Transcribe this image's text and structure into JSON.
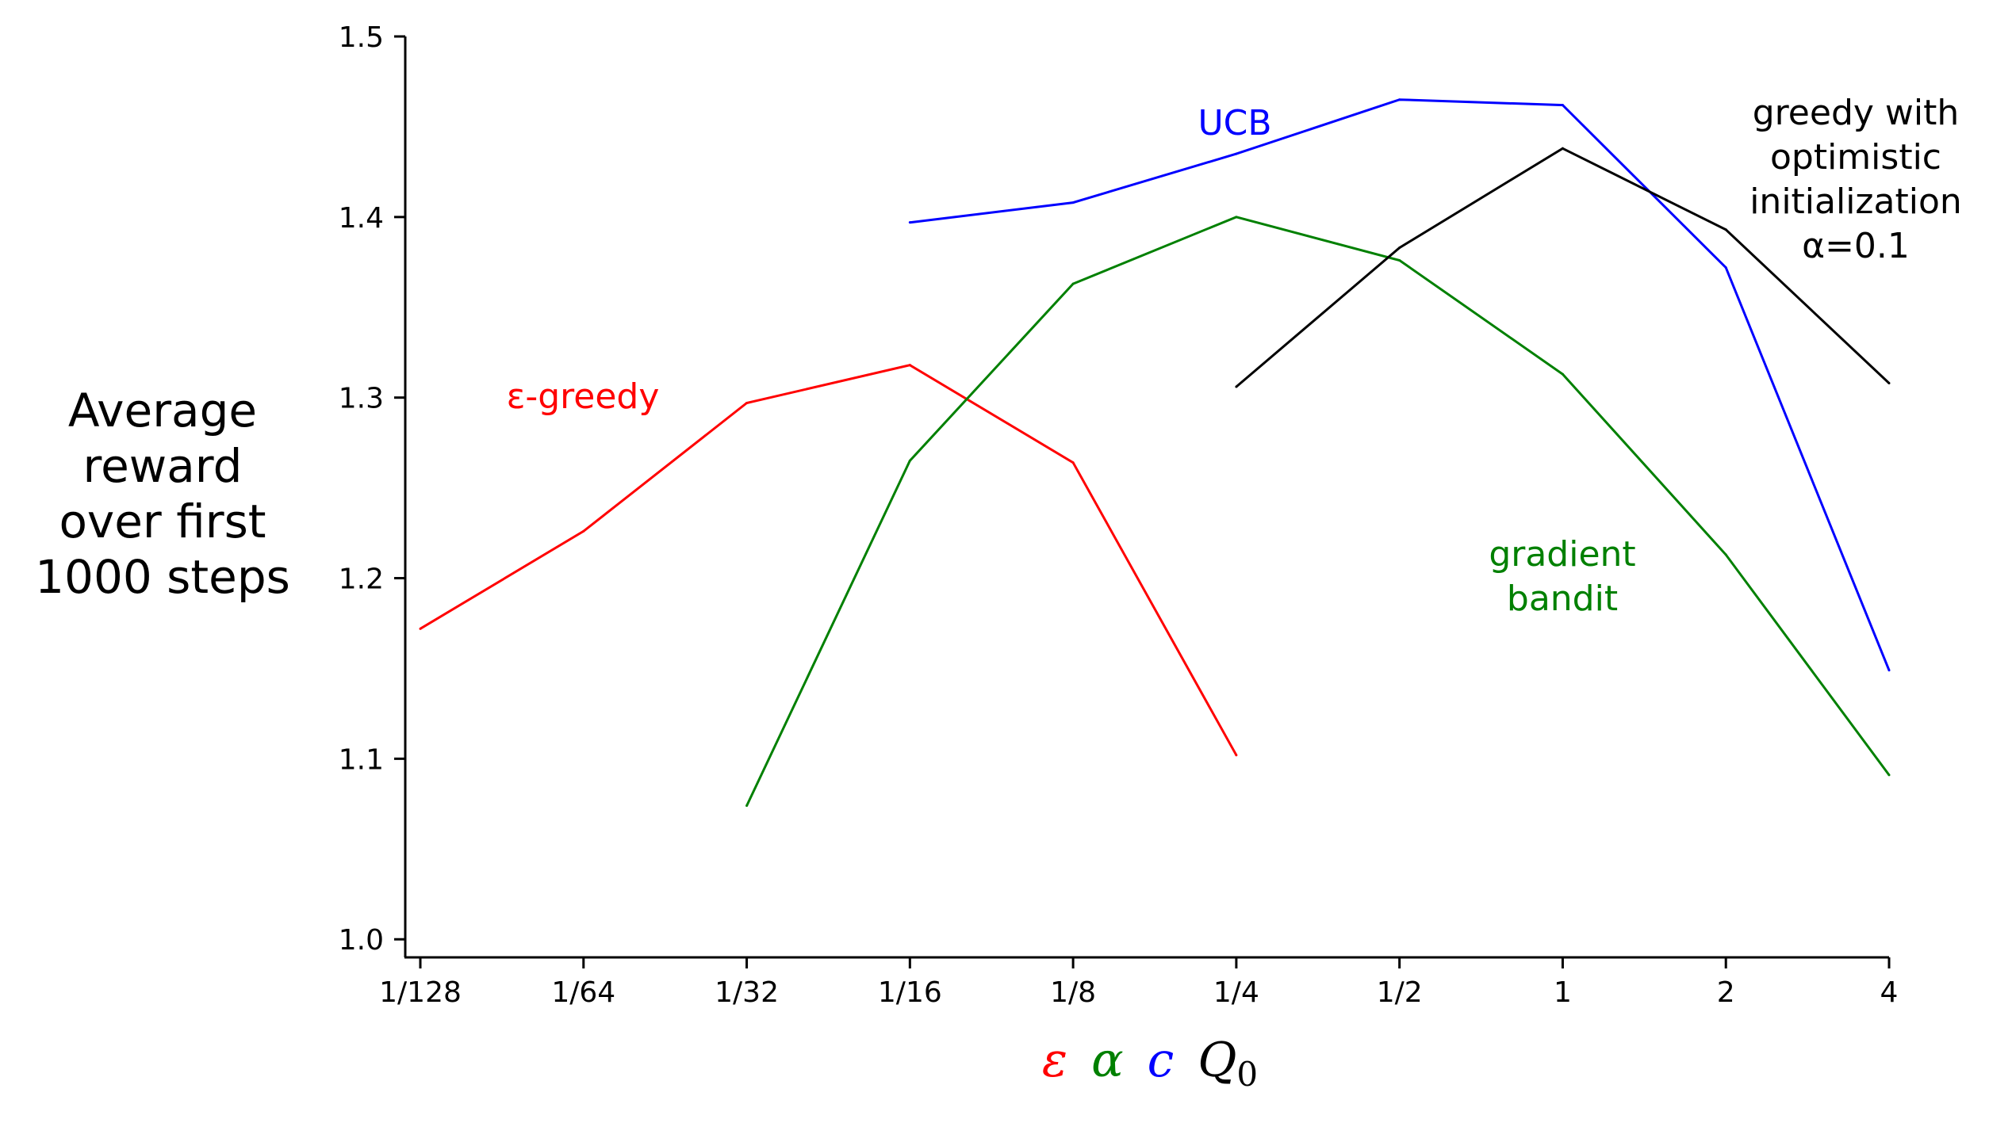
{
  "chart_data": {
    "type": "line",
    "x_categories": [
      "1/128",
      "1/64",
      "1/32",
      "1/16",
      "1/8",
      "1/4",
      "1/2",
      "1",
      "2",
      "4"
    ],
    "xscale": "log2",
    "ylim": [
      0.99,
      1.5
    ],
    "yticks": [
      "1.0",
      "1.1",
      "1.2",
      "1.3",
      "1.4",
      "1.5"
    ],
    "ylabel_lines": [
      "Average",
      "reward",
      "over first",
      "1000 steps"
    ],
    "xlabel_parts": [
      {
        "symbol": "ε",
        "color": "#ff0000"
      },
      {
        "symbol": "α",
        "color": "#008000"
      },
      {
        "symbol": "c",
        "color": "#0000ff"
      },
      {
        "symbol": "Q",
        "sub": "0",
        "color": "#000000"
      }
    ],
    "series": [
      {
        "name": "ε-greedy",
        "color": "#ff0000",
        "label_lines": [
          "ε-greedy"
        ],
        "points": [
          [
            "1/128",
            1.172
          ],
          [
            "1/64",
            1.226
          ],
          [
            "1/32",
            1.297
          ],
          [
            "1/16",
            1.318
          ],
          [
            "1/8",
            1.264
          ],
          [
            "1/4",
            1.102
          ]
        ]
      },
      {
        "name": "gradient bandit",
        "color": "#008000",
        "label_lines": [
          "gradient",
          "bandit"
        ],
        "points": [
          [
            "1/32",
            1.074
          ],
          [
            "1/16",
            1.265
          ],
          [
            "1/8",
            1.363
          ],
          [
            "1/4",
            1.4
          ],
          [
            "1/2",
            1.376
          ],
          [
            "1",
            1.313
          ],
          [
            "2",
            1.213
          ],
          [
            "4",
            1.091
          ]
        ]
      },
      {
        "name": "UCB",
        "color": "#0000ff",
        "label_lines": [
          "UCB"
        ],
        "points": [
          [
            "1/16",
            1.397
          ],
          [
            "1/8",
            1.408
          ],
          [
            "1/4",
            1.435
          ],
          [
            "1/2",
            1.465
          ],
          [
            "1",
            1.462
          ],
          [
            "2",
            1.372
          ],
          [
            "4",
            1.149
          ]
        ]
      },
      {
        "name": "greedy with optimistic initialization α=0.1",
        "color": "#000000",
        "label_lines": [
          "greedy with",
          "optimistic",
          "initialization",
          "α=0.1"
        ],
        "points": [
          [
            "1/4",
            1.306
          ],
          [
            "1/2",
            1.383
          ],
          [
            "1",
            1.438
          ],
          [
            "2",
            1.393
          ],
          [
            "4",
            1.308
          ]
        ]
      }
    ]
  }
}
